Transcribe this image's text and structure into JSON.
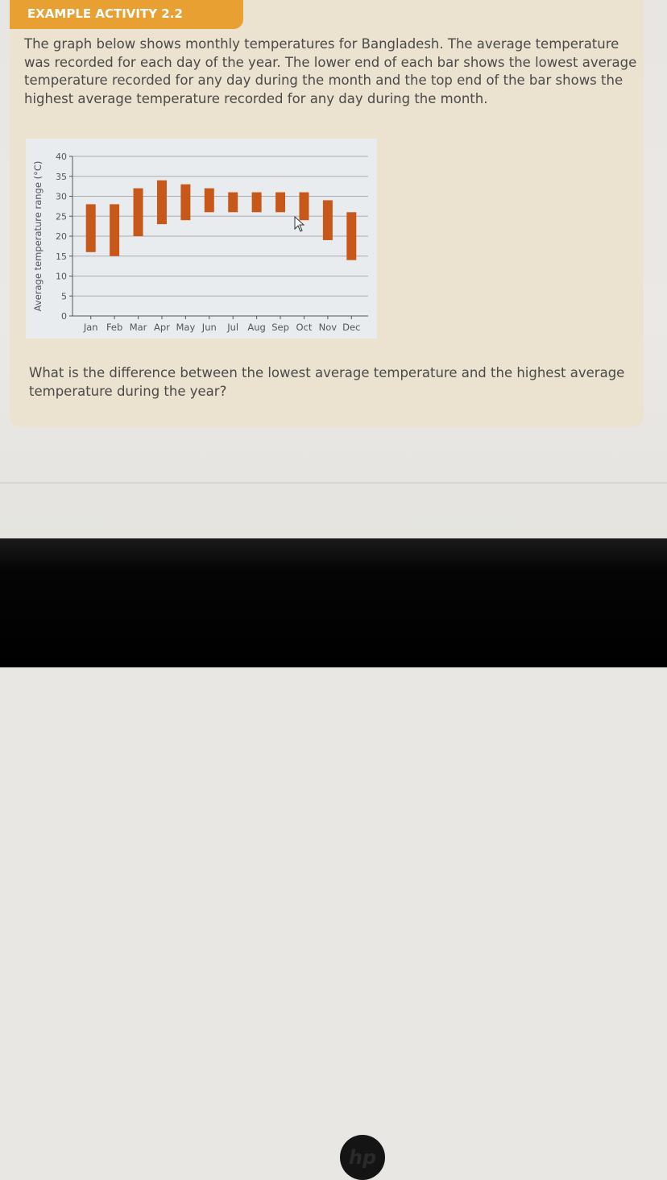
{
  "activity": {
    "title": "EXAMPLE ACTIVITY 2.2",
    "intro": "The graph below shows monthly temperatures for Bangladesh. The average temperature was recorded for each day of the year. The lower end of each bar shows the lowest average temperature recorded for any day during the month and the top end of the bar shows the highest average temperature recorded for any day during the month.",
    "question": "What is the difference between the lowest average temperature and the highest average temperature during the year?"
  },
  "device": {
    "logo": "hp"
  },
  "colors": {
    "header": "#e8a033",
    "bar": "#c8581a",
    "card": "#ebe2cf",
    "chart_bg": "#e8ecef"
  },
  "chart_data": {
    "type": "bar",
    "subtype": "floating-range",
    "title": "",
    "xlabel": "",
    "ylabel": "Average temperature range (°C)",
    "categories": [
      "Jan",
      "Feb",
      "Mar",
      "Apr",
      "May",
      "Jun",
      "Jul",
      "Aug",
      "Sep",
      "Oct",
      "Nov",
      "Dec"
    ],
    "series": [
      {
        "name": "Lowest average",
        "values": [
          16,
          15,
          20,
          23,
          24,
          26,
          26,
          26,
          26,
          24,
          19,
          14
        ]
      },
      {
        "name": "Highest average",
        "values": [
          28,
          28,
          32,
          34,
          33,
          32,
          31,
          31,
          31,
          31,
          29,
          26
        ]
      }
    ],
    "yticks": [
      0,
      5,
      10,
      15,
      20,
      25,
      30,
      35,
      40
    ],
    "ylim": [
      0,
      40
    ],
    "grid": true,
    "legend": "none"
  }
}
